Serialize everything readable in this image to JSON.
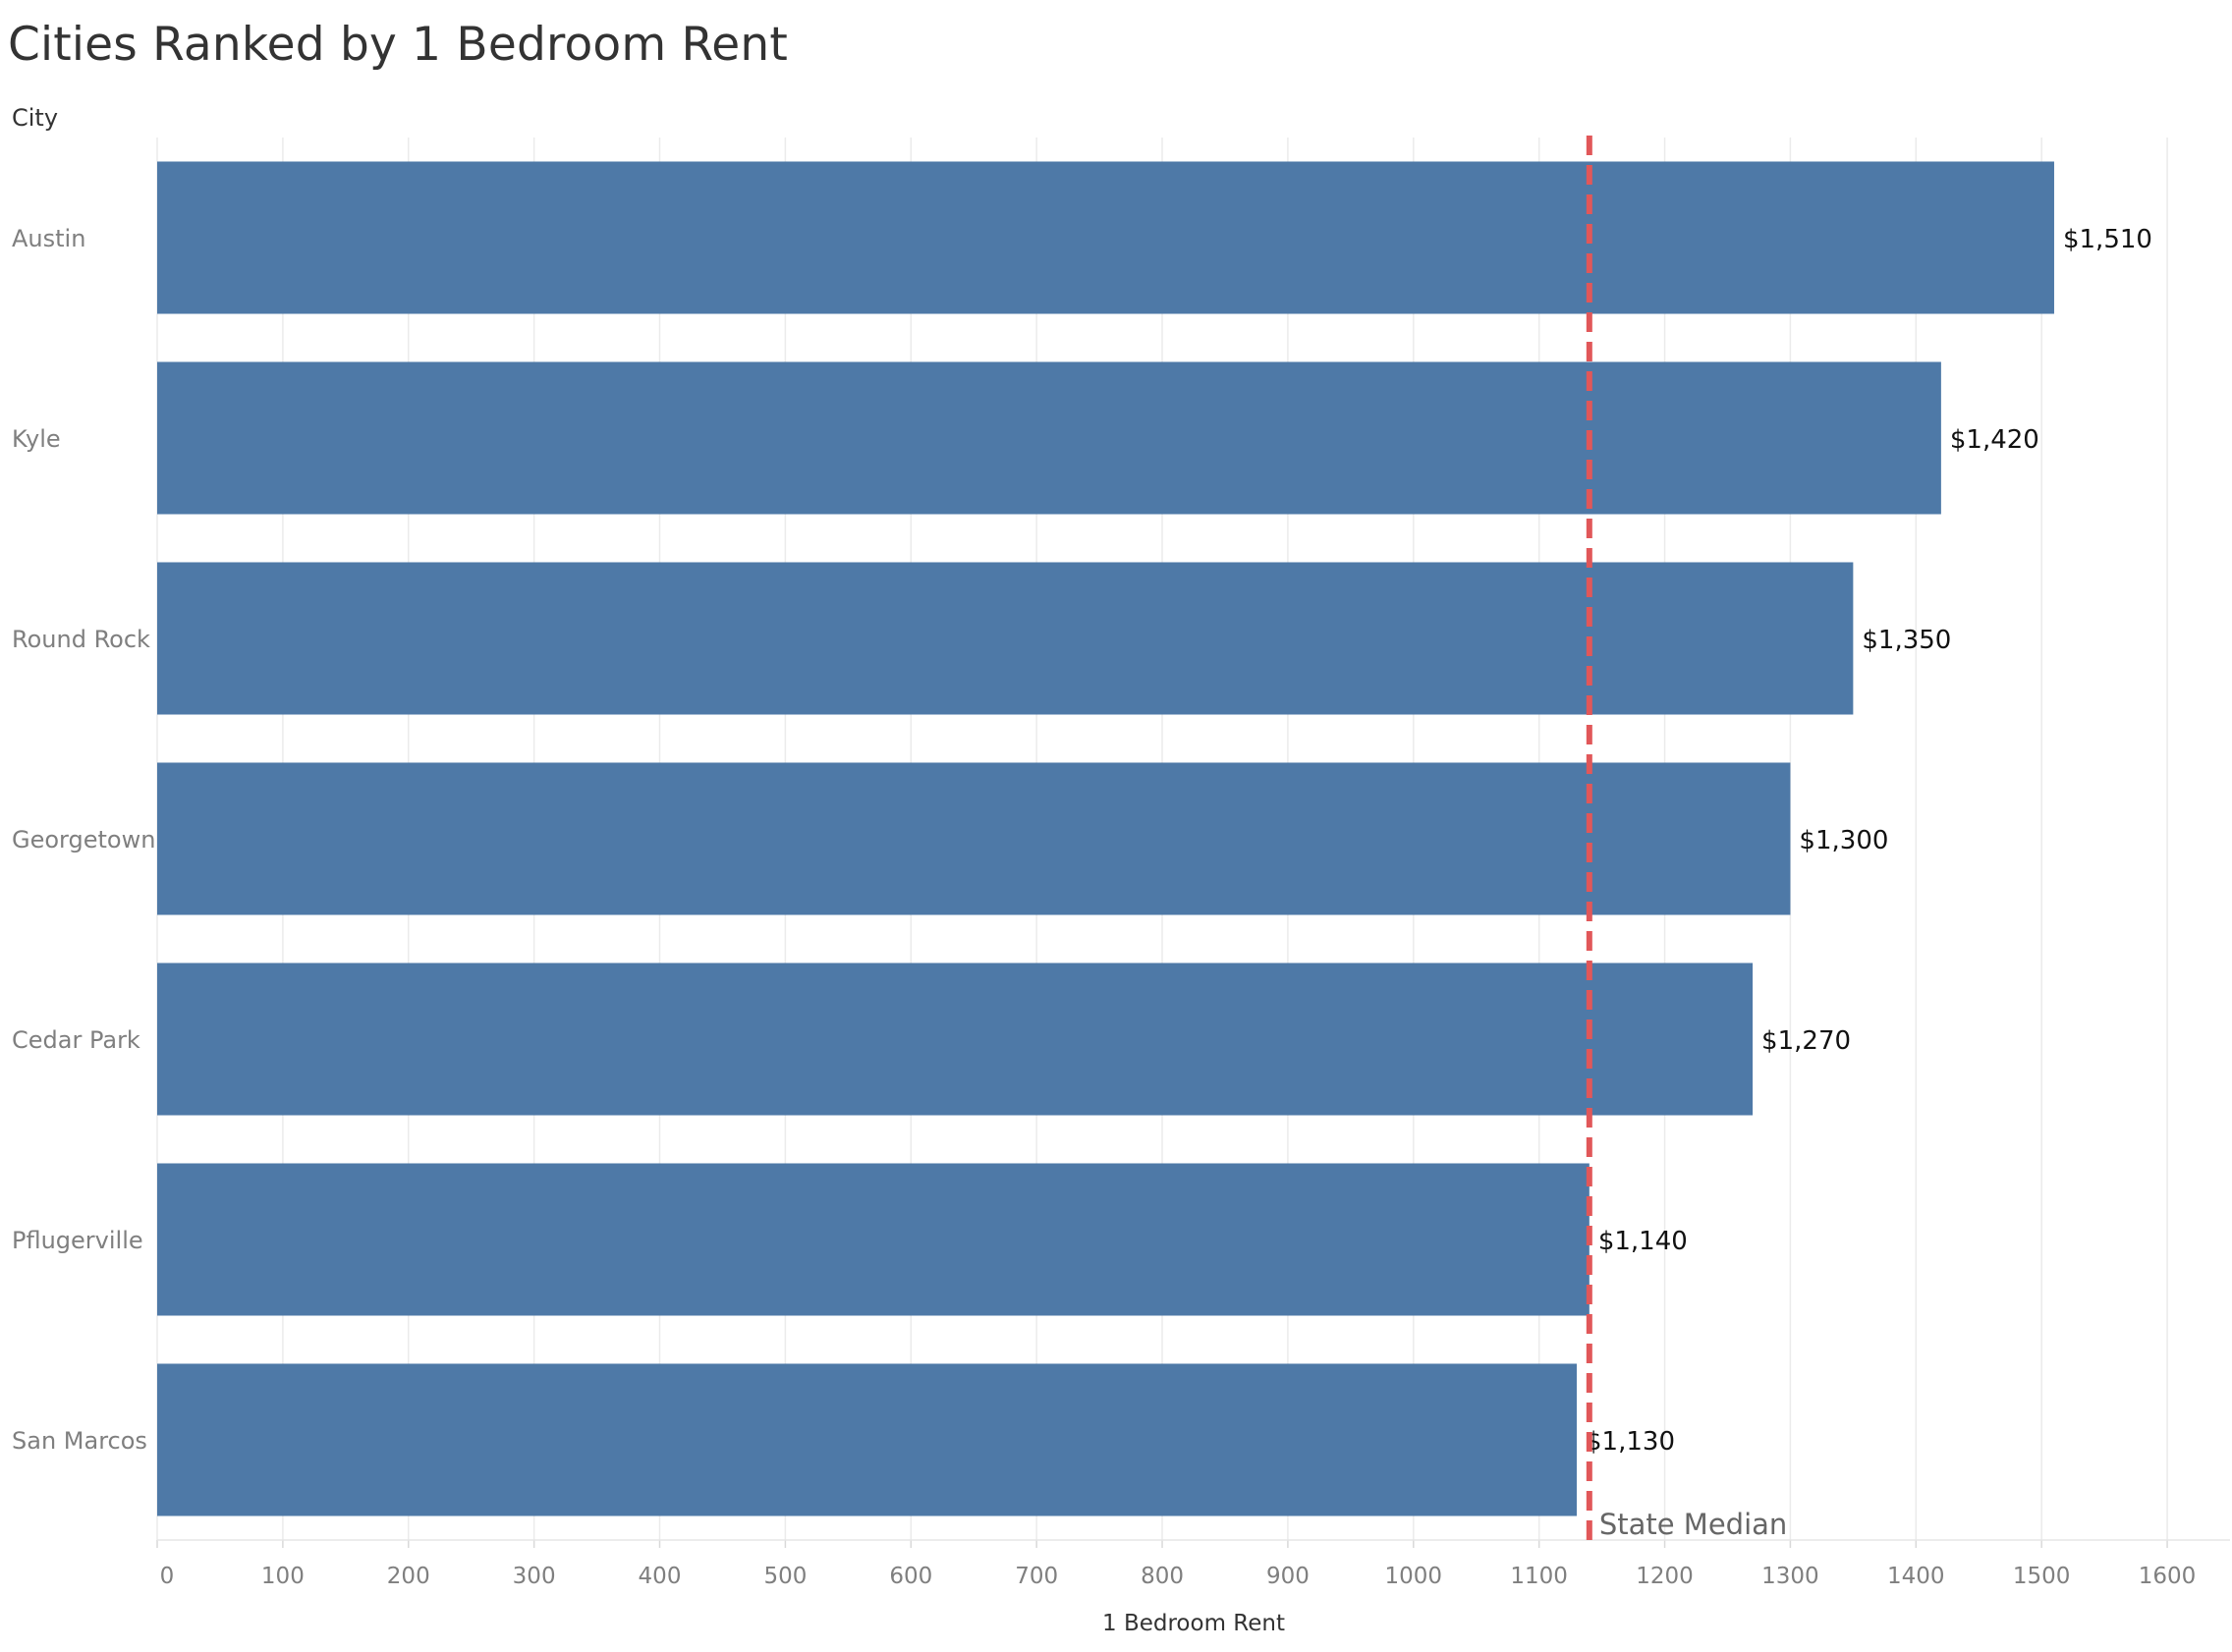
{
  "chart_data": {
    "type": "bar",
    "orientation": "horizontal",
    "title": "Cities Ranked by 1 Bedroom Rent",
    "row_header": "City",
    "xlabel": "1 Bedroom Rent",
    "ylabel": "",
    "categories": [
      "Austin",
      "Kyle",
      "Round Rock",
      "Georgetown",
      "Cedar Park",
      "Pflugerville",
      "San Marcos"
    ],
    "values": [
      1510,
      1420,
      1350,
      1300,
      1270,
      1140,
      1130
    ],
    "data_labels": [
      "$1,510",
      "$1,420",
      "$1,350",
      "$1,300",
      "$1,270",
      "$1,140",
      "$1,130"
    ],
    "xlim": [
      0,
      1650
    ],
    "x_ticks": [
      0,
      100,
      200,
      300,
      400,
      500,
      600,
      700,
      800,
      900,
      1000,
      1100,
      1200,
      1300,
      1400,
      1500,
      1600
    ],
    "reference_line": {
      "label": "State Median",
      "value": 1140,
      "style": "dashed",
      "color": "#e15759"
    },
    "bar_color": "#4e79a7",
    "grid": true
  }
}
